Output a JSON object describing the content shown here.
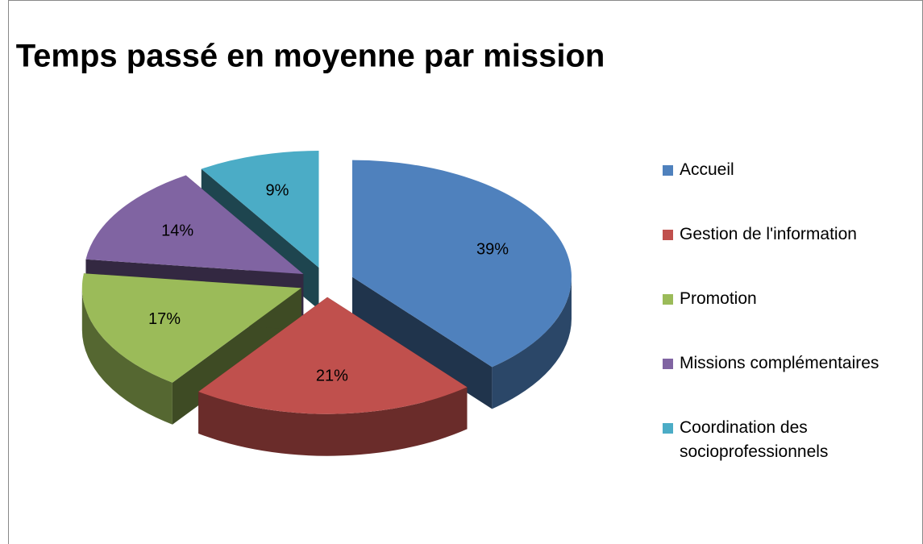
{
  "chart_data": {
    "type": "pie3d",
    "title": "Temps passé en moyenne par mission",
    "categories": [
      "Accueil",
      "Gestion de l'information",
      "Promotion",
      "Missions complémentaires",
      "Coordination des socioprofessionnels"
    ],
    "values": [
      39,
      21,
      17,
      14,
      9
    ],
    "value_labels": [
      "39%",
      "21%",
      "17%",
      "14%",
      "9%"
    ],
    "colors": [
      "#4f81bd",
      "#c0504d",
      "#9bbb59",
      "#8064a2",
      "#4bacc6"
    ],
    "legend": "right"
  }
}
